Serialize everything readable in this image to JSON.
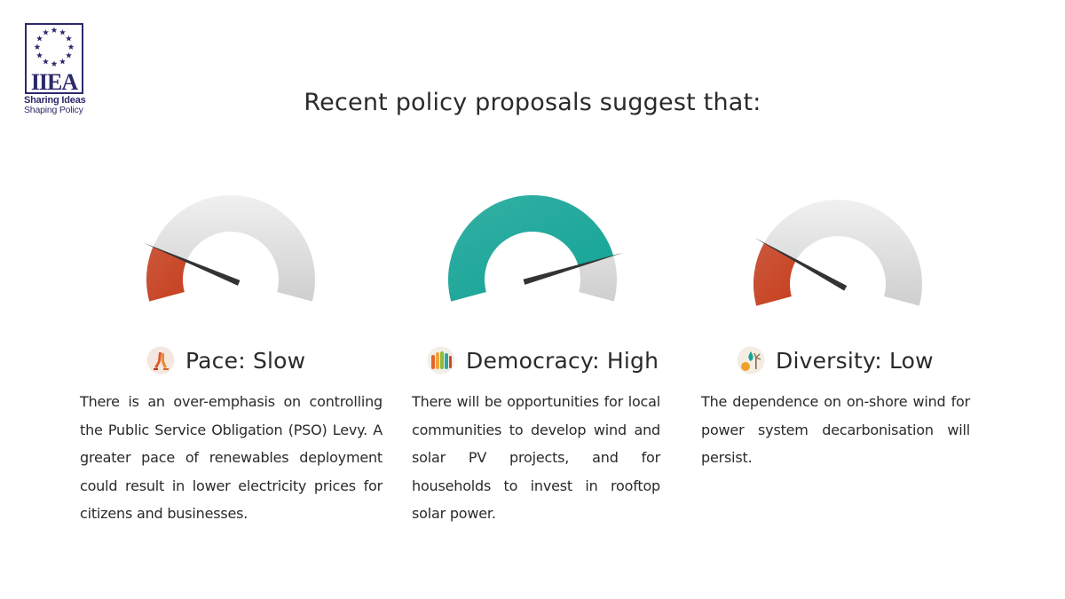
{
  "logo": {
    "acronym": "IIEA",
    "line1": "Sharing Ideas",
    "line2": "Shaping Policy",
    "color": "#2b2a6b"
  },
  "heading": "Recent policy proposals suggest that:",
  "colors": {
    "low_fill": "#c8401f",
    "high_fill": "#13a597",
    "track": "#dedede",
    "needle": "#333333"
  },
  "columns": [
    {
      "title": "Pace: Slow",
      "icon": "walking-legs-icon",
      "level": 0.18,
      "color": "#c8401f",
      "body": "There is an over-emphasis on controlling the Public Service Obligation (PSO) Levy. A greater pace of renewables deployment could result in lower electricity prices for citizens and businesses."
    },
    {
      "title": "Democracy: High",
      "icon": "raised-hands-icon",
      "level": 0.85,
      "color": "#13a597",
      "body": "There will be opportunities for local communities to develop wind and solar PV projects, and for households to invest in rooftop solar power."
    },
    {
      "title": "Diversity: Low",
      "icon": "energy-mix-icon",
      "level": 0.21,
      "color": "#c8401f",
      "body": "The dependence on on-shore wind for power system decarbonisation will persist."
    }
  ]
}
